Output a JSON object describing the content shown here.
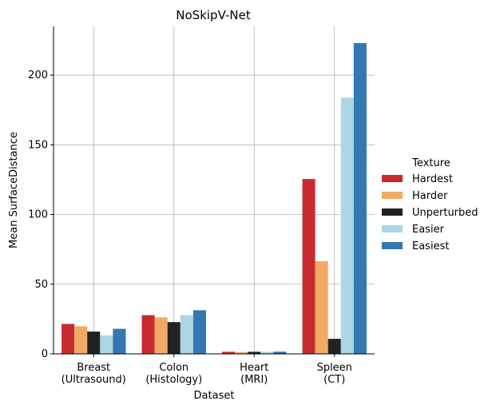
{
  "chart_data": {
    "type": "bar",
    "title": "NoSkipV-Net",
    "xlabel": "Dataset",
    "ylabel": "Mean SurfaceDistance",
    "categories": [
      [
        "Breast",
        "(Ultrasound)"
      ],
      [
        "Colon",
        "(Histology)"
      ],
      [
        "Heart",
        "(MRI)"
      ],
      [
        "Spleen",
        "(CT)"
      ]
    ],
    "legend_title": "Texture",
    "legend_position": "right-center",
    "grid": true,
    "ylim": [
      0,
      235
    ],
    "yticks": [
      0,
      50,
      100,
      150,
      200
    ],
    "series": [
      {
        "name": "Hardest",
        "color": "#c72b2f",
        "values": [
          21.5,
          27.8,
          1.5,
          125.5
        ]
      },
      {
        "name": "Harder",
        "color": "#f2a964",
        "values": [
          19.8,
          26.2,
          1.3,
          66.5
        ]
      },
      {
        "name": "Unperturbed",
        "color": "#222222",
        "values": [
          16.0,
          22.8,
          1.5,
          10.8
        ]
      },
      {
        "name": "Easier",
        "color": "#acd6e6",
        "values": [
          13.2,
          27.8,
          1.5,
          183.8
        ]
      },
      {
        "name": "Easiest",
        "color": "#3577b0",
        "values": [
          18.0,
          31.3,
          1.6,
          223.0
        ]
      }
    ]
  }
}
